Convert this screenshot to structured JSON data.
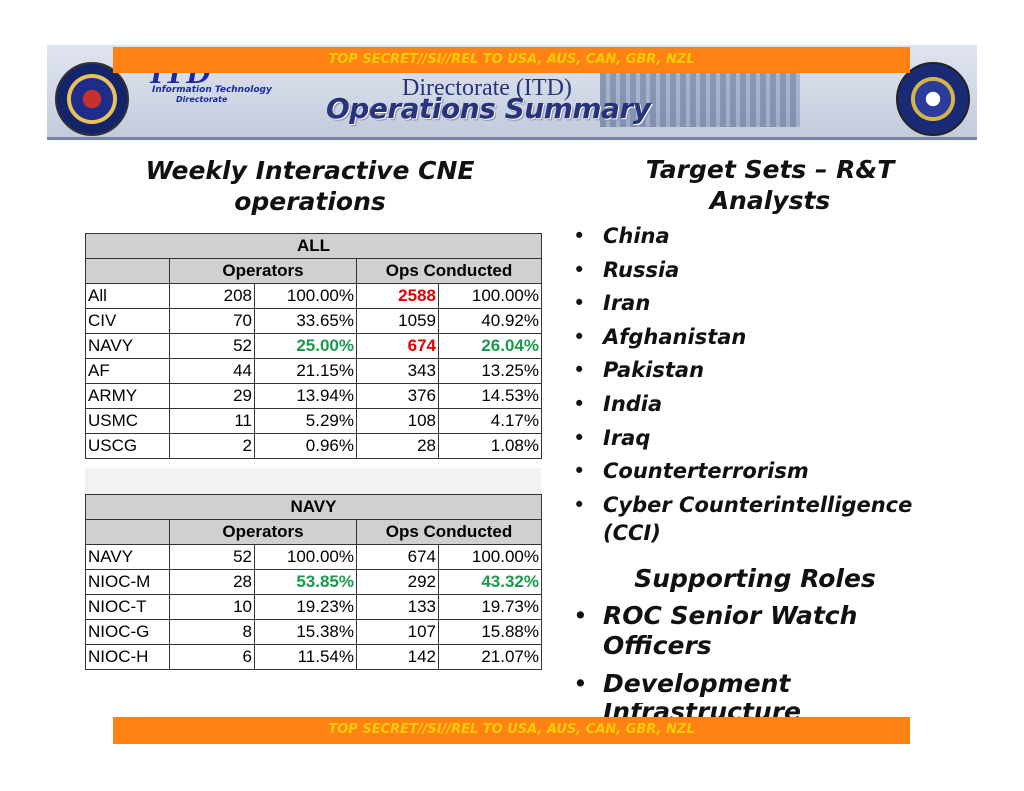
{
  "classification": "TOP SECRET//SI//REL TO USA, AUS, CAN, GBR, NZL",
  "header": {
    "logo_text": "ITD",
    "logo_sub1": "Information Technology",
    "logo_sub2": "Directorate",
    "title_line": "Directorate (ITD)",
    "page_title": "Operations Summary"
  },
  "left": {
    "heading": "Weekly Interactive CNE operations",
    "table_all": {
      "title": "ALL",
      "col1": "Operators",
      "col2": "Ops Conducted",
      "rows": [
        {
          "name": "All",
          "operators": "208",
          "op_pct": "100.00%",
          "ops": "2588",
          "ops_pct": "100.00%"
        },
        {
          "name": "CIV",
          "operators": "70",
          "op_pct": "33.65%",
          "ops": "1059",
          "ops_pct": "40.92%"
        },
        {
          "name": "NAVY",
          "operators": "52",
          "op_pct": "25.00%",
          "ops": "674",
          "ops_pct": "26.04%"
        },
        {
          "name": "AF",
          "operators": "44",
          "op_pct": "21.15%",
          "ops": "343",
          "ops_pct": "13.25%"
        },
        {
          "name": "ARMY",
          "operators": "29",
          "op_pct": "13.94%",
          "ops": "376",
          "ops_pct": "14.53%"
        },
        {
          "name": "USMC",
          "operators": "11",
          "op_pct": "5.29%",
          "ops": "108",
          "ops_pct": "4.17%"
        },
        {
          "name": "USCG",
          "operators": "2",
          "op_pct": "0.96%",
          "ops": "28",
          "ops_pct": "1.08%"
        }
      ]
    },
    "table_navy": {
      "title": "NAVY",
      "col1": "Operators",
      "col2": "Ops Conducted",
      "rows": [
        {
          "name": "NAVY",
          "operators": "52",
          "op_pct": "100.00%",
          "ops": "674",
          "ops_pct": "100.00%"
        },
        {
          "name": "NIOC-M",
          "operators": "28",
          "op_pct": "53.85%",
          "ops": "292",
          "ops_pct": "43.32%"
        },
        {
          "name": "NIOC-T",
          "operators": "10",
          "op_pct": "19.23%",
          "ops": "133",
          "ops_pct": "19.73%"
        },
        {
          "name": "NIOC-G",
          "operators": "8",
          "op_pct": "15.38%",
          "ops": "107",
          "ops_pct": "15.88%"
        },
        {
          "name": "NIOC-H",
          "operators": "6",
          "op_pct": "11.54%",
          "ops": "142",
          "ops_pct": "21.07%"
        }
      ]
    }
  },
  "right": {
    "heading": "Target Sets – R&T Analysts",
    "targets": [
      "China",
      "Russia",
      "Iran",
      "Afghanistan",
      "Pakistan",
      "India",
      "Iraq",
      "Counterterrorism",
      "Cyber Counterintelligence (CCI)"
    ],
    "support_heading": "Supporting Roles",
    "roles": [
      "ROC Senior Watch Officers",
      "Development"
    ],
    "cutoff_text": "Infrastructure"
  },
  "colors": {
    "banner": "#ff8214",
    "banner_text": "#ffcc00",
    "highlight_red": "#e60000",
    "highlight_green": "#1a9a4a"
  }
}
